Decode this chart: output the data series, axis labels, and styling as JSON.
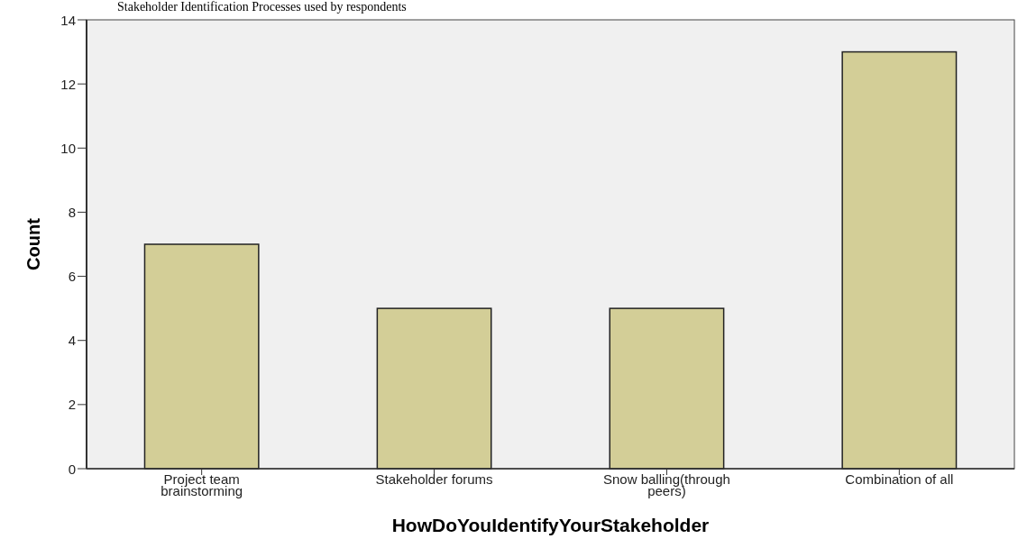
{
  "chart_data": {
    "type": "bar",
    "title": "Stakeholder Identification Processes used by respondents",
    "xlabel": "HowDoYouIdentifyYourStakeholder",
    "ylabel": "Count",
    "categories": [
      "Project team brainstorming",
      "Stakeholder forums",
      "Snow balling(through peers)",
      "Combination of all"
    ],
    "values": [
      7,
      5,
      5,
      13
    ],
    "color": "#d3ce97",
    "ylim": [
      0,
      14
    ],
    "yticks": [
      0,
      2,
      4,
      6,
      8,
      10,
      12,
      14
    ],
    "grid": false
  }
}
